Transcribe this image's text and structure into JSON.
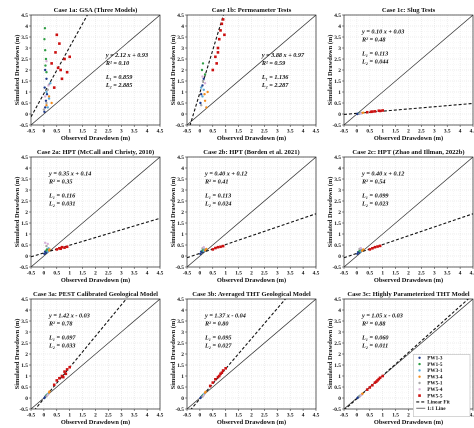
{
  "chart_data": {
    "type": "scatter",
    "axes": {
      "xlabel": "Observed Drawdown (m)",
      "ylabel": "Simulated Drawdown (m)",
      "xlim": [
        -0.5,
        4.5
      ],
      "ylim": [
        -0.5,
        4.5
      ],
      "ticks": [
        "-0.5",
        "0",
        "0.5",
        "1",
        "1.5",
        "2",
        "2.5",
        "3",
        "3.5",
        "4",
        "4.5"
      ],
      "grid": true
    },
    "series_styles": [
      {
        "name": "PW1-3",
        "color": "#1f3b8c",
        "marker": "circle"
      },
      {
        "name": "PW1-5",
        "color": "#2e9e44",
        "marker": "circle"
      },
      {
        "name": "PW3-1",
        "color": "#5aa9d6",
        "marker": "circle"
      },
      {
        "name": "PW3-4",
        "color": "#f28c1c",
        "marker": "circle"
      },
      {
        "name": "PW5-1",
        "color": "#a8a8a8",
        "marker": "circle"
      },
      {
        "name": "PW5-4",
        "color": "#d7b0d8",
        "marker": "circle"
      },
      {
        "name": "PW5-5",
        "color": "#cc1111",
        "marker": "square"
      }
    ],
    "legend": {
      "placement": "bottom-right of panel 3c",
      "entries": [
        "PW1-3",
        "PW1-5",
        "PW3-1",
        "PW3-4",
        "PW5-1",
        "PW5-4",
        "PW5-5",
        "Linear Fit",
        "1:1 Line"
      ]
    },
    "panels": [
      {
        "title": "Case 1a: GSA (Three Models)",
        "eq": "y = 2.12 x + 0.93",
        "r2": "R² = 0.10",
        "l1": "L₁ = 0.859",
        "l2": "L₂ = 2.885",
        "fit": [
          2.12,
          0.93
        ],
        "points": [
          [
            0.02,
            0.1,
            0
          ],
          [
            0.05,
            0.3,
            0
          ],
          [
            0.08,
            0.6,
            0
          ],
          [
            0.03,
            1.2,
            0
          ],
          [
            0.1,
            1.6,
            0
          ],
          [
            0.05,
            2.0,
            0
          ],
          [
            0.12,
            0.9,
            0
          ],
          [
            0.02,
            3.4,
            1
          ],
          [
            0.05,
            2.9,
            1
          ],
          [
            0.08,
            2.5,
            1
          ],
          [
            0.04,
            3.9,
            1
          ],
          [
            0.1,
            1.9,
            1
          ],
          [
            0.06,
            2.2,
            1
          ],
          [
            0.15,
            0.3,
            2
          ],
          [
            0.2,
            0.7,
            2
          ],
          [
            0.25,
            1.4,
            2
          ],
          [
            0.1,
            1.0,
            2
          ],
          [
            0.3,
            0.5,
            3
          ],
          [
            0.2,
            0.8,
            3
          ],
          [
            0.1,
            0.4,
            3
          ],
          [
            0.0,
            0.2,
            4
          ],
          [
            0.1,
            0.5,
            4
          ],
          [
            0.15,
            1.1,
            4
          ],
          [
            0.05,
            0.8,
            5
          ],
          [
            0.18,
            1.3,
            5
          ],
          [
            0.1,
            2.4,
            5
          ],
          [
            0.45,
            2.8,
            6
          ],
          [
            0.6,
            3.2,
            6
          ],
          [
            0.55,
            2.1,
            6
          ],
          [
            0.8,
            2.5,
            6
          ],
          [
            0.9,
            1.9,
            6
          ],
          [
            0.7,
            1.6,
            6
          ],
          [
            0.4,
            1.2,
            6
          ],
          [
            0.5,
            3.6,
            6
          ],
          [
            0.3,
            2.3,
            6
          ],
          [
            1.0,
            2.6,
            6
          ],
          [
            0.65,
            2.0,
            6
          ]
        ]
      },
      {
        "title": "Case 1b: Permeameter Tests",
        "eq": "y = 3.88 x + 0.97",
        "r2": "R² = 0.59",
        "l1": "L₁ = 1.136",
        "l2": "L₂ = 2.287",
        "fit": [
          3.88,
          0.97
        ],
        "points": [
          [
            0.02,
            0.5,
            0
          ],
          [
            0.05,
            0.9,
            0
          ],
          [
            0.1,
            1.3,
            0
          ],
          [
            0.15,
            1.6,
            0
          ],
          [
            0.08,
            2.0,
            1
          ],
          [
            0.12,
            2.3,
            1
          ],
          [
            0.2,
            1.8,
            1
          ],
          [
            0.05,
            1.2,
            2
          ],
          [
            0.1,
            0.8,
            2
          ],
          [
            0.15,
            1.1,
            2
          ],
          [
            0.2,
            0.6,
            3
          ],
          [
            0.25,
            0.3,
            3
          ],
          [
            0.18,
            0.9,
            3
          ],
          [
            0.3,
            1.0,
            3
          ],
          [
            0.05,
            0.4,
            4
          ],
          [
            0.12,
            1.5,
            4
          ],
          [
            0.1,
            1.7,
            5
          ],
          [
            0.2,
            1.4,
            5
          ],
          [
            0.6,
            2.6,
            6
          ],
          [
            0.7,
            3.0,
            6
          ],
          [
            0.75,
            3.4,
            6
          ],
          [
            0.8,
            3.8,
            6
          ],
          [
            0.85,
            4.1,
            6
          ],
          [
            0.65,
            2.3,
            6
          ],
          [
            0.9,
            4.3,
            6
          ],
          [
            0.5,
            2.0,
            6
          ],
          [
            0.7,
            2.8,
            6
          ],
          [
            0.95,
            3.6,
            6
          ]
        ]
      },
      {
        "title": "Case 1c: Slug Tests",
        "eq": "y = 0.10 x + 0.03",
        "r2": "R² = 0.48",
        "l1": "L₁ = 0.113",
        "l2": "L₂ = 0.044",
        "fit": [
          0.1,
          0.03
        ],
        "points": [
          [
            0.02,
            0.0,
            0
          ],
          [
            0.05,
            0.02,
            0
          ],
          [
            0.08,
            0.03,
            0
          ],
          [
            0.1,
            0.02,
            1
          ],
          [
            0.12,
            0.04,
            1
          ],
          [
            0.15,
            0.05,
            2
          ],
          [
            0.18,
            0.03,
            2
          ],
          [
            0.2,
            0.05,
            3
          ],
          [
            0.25,
            0.06,
            3
          ],
          [
            0.1,
            0.01,
            4
          ],
          [
            0.15,
            0.02,
            5
          ],
          [
            0.4,
            0.08,
            6
          ],
          [
            0.55,
            0.1,
            6
          ],
          [
            0.7,
            0.12,
            6
          ],
          [
            0.85,
            0.15,
            6
          ],
          [
            1.0,
            0.16,
            6
          ],
          [
            0.6,
            0.11,
            6
          ],
          [
            0.9,
            0.14,
            6
          ]
        ]
      },
      {
        "title": "Case 2a: HPT (McCall and Christy, 2010)",
        "eq": "y = 0.35 x + 0.14",
        "r2": "R² = 0.35",
        "l1": "L₁ = 0.116",
        "l2": "L₂ = 0.031",
        "fit": [
          0.35,
          0.14
        ],
        "points": [
          [
            0.02,
            0.1,
            0
          ],
          [
            0.05,
            0.2,
            0
          ],
          [
            0.08,
            0.15,
            0
          ],
          [
            0.1,
            0.25,
            1
          ],
          [
            0.12,
            0.3,
            1
          ],
          [
            0.15,
            0.2,
            2
          ],
          [
            0.18,
            0.35,
            2
          ],
          [
            0.2,
            0.25,
            3
          ],
          [
            0.22,
            0.3,
            3
          ],
          [
            0.1,
            0.45,
            4
          ],
          [
            0.15,
            0.55,
            5
          ],
          [
            0.05,
            0.6,
            5
          ],
          [
            0.5,
            0.3,
            6
          ],
          [
            0.6,
            0.35,
            6
          ],
          [
            0.7,
            0.4,
            6
          ],
          [
            0.8,
            0.38,
            6
          ],
          [
            0.9,
            0.42,
            6
          ],
          [
            0.65,
            0.33,
            6
          ]
        ]
      },
      {
        "title": "Case 2b: HPT (Borden et al. 2021)",
        "eq": "y = 0.40 x + 0.12",
        "r2": "R² = 0.41",
        "l1": "L₁ = 0.113",
        "l2": "L₂ = 0.024",
        "fit": [
          0.4,
          0.12
        ],
        "points": [
          [
            0.02,
            0.1,
            0
          ],
          [
            0.05,
            0.2,
            0
          ],
          [
            0.08,
            0.18,
            0
          ],
          [
            0.1,
            0.25,
            1
          ],
          [
            0.12,
            0.28,
            1
          ],
          [
            0.15,
            0.22,
            2
          ],
          [
            0.18,
            0.3,
            2
          ],
          [
            0.2,
            0.26,
            3
          ],
          [
            0.25,
            0.32,
            3
          ],
          [
            0.1,
            0.35,
            4
          ],
          [
            0.15,
            0.4,
            5
          ],
          [
            0.5,
            0.3,
            6
          ],
          [
            0.6,
            0.36,
            6
          ],
          [
            0.7,
            0.4,
            6
          ],
          [
            0.8,
            0.42,
            6
          ],
          [
            0.9,
            0.45,
            6
          ]
        ]
      },
      {
        "title": "Case 2c: HPT (Zhao and Illman, 2022b)",
        "eq": "y = 0.40 x + 0.12",
        "r2": "R² = 0.54",
        "l1": "L₁ = 0.099",
        "l2": "L₂ = 0.023",
        "fit": [
          0.4,
          0.12
        ],
        "points": [
          [
            0.02,
            0.1,
            0
          ],
          [
            0.05,
            0.18,
            0
          ],
          [
            0.08,
            0.16,
            0
          ],
          [
            0.1,
            0.22,
            1
          ],
          [
            0.12,
            0.26,
            1
          ],
          [
            0.15,
            0.2,
            2
          ],
          [
            0.18,
            0.28,
            2
          ],
          [
            0.2,
            0.24,
            3
          ],
          [
            0.25,
            0.3,
            3
          ],
          [
            0.1,
            0.32,
            4
          ],
          [
            0.15,
            0.36,
            5
          ],
          [
            0.5,
            0.3,
            6
          ],
          [
            0.6,
            0.35,
            6
          ],
          [
            0.7,
            0.4,
            6
          ],
          [
            0.8,
            0.43,
            6
          ],
          [
            0.9,
            0.46,
            6
          ]
        ]
      },
      {
        "title": "Case 3a: PEST Calibrated Geological Model",
        "eq": "y = 1.42 x - 0.03",
        "r2": "R² = 0.78",
        "l1": "L₁ = 0.097",
        "l2": "L₂ = 0.033",
        "fit": [
          1.42,
          -0.03
        ],
        "points": [
          [
            0.02,
            0.0,
            0
          ],
          [
            0.05,
            0.05,
            0
          ],
          [
            0.08,
            0.1,
            0
          ],
          [
            0.1,
            0.12,
            1
          ],
          [
            0.12,
            0.15,
            1
          ],
          [
            0.15,
            0.18,
            2
          ],
          [
            0.18,
            0.2,
            2
          ],
          [
            0.2,
            0.25,
            3
          ],
          [
            0.22,
            0.3,
            3
          ],
          [
            0.1,
            0.08,
            4
          ],
          [
            0.15,
            0.14,
            5
          ],
          [
            0.4,
            0.6,
            6
          ],
          [
            0.5,
            0.8,
            6
          ],
          [
            0.6,
            0.9,
            6
          ],
          [
            0.7,
            1.0,
            6
          ],
          [
            0.8,
            1.2,
            6
          ],
          [
            0.9,
            1.3,
            6
          ],
          [
            1.0,
            1.4,
            6
          ],
          [
            0.75,
            0.95,
            6
          ],
          [
            0.85,
            1.1,
            6
          ]
        ]
      },
      {
        "title": "Case 3b: Averaged THT Geological Model",
        "eq": "y = 1.37 x - 0.04",
        "r2": "R² = 0.80",
        "l1": "L₁ = 0.095",
        "l2": "L₂ = 0.027",
        "fit": [
          1.37,
          -0.04
        ],
        "points": [
          [
            0.02,
            0.0,
            0
          ],
          [
            0.05,
            0.04,
            0
          ],
          [
            0.08,
            0.08,
            0
          ],
          [
            0.1,
            0.1,
            1
          ],
          [
            0.12,
            0.14,
            1
          ],
          [
            0.15,
            0.16,
            2
          ],
          [
            0.18,
            0.2,
            2
          ],
          [
            0.2,
            0.24,
            3
          ],
          [
            0.22,
            0.28,
            3
          ],
          [
            0.1,
            0.06,
            4
          ],
          [
            0.15,
            0.12,
            5
          ],
          [
            0.4,
            0.55,
            6
          ],
          [
            0.5,
            0.7,
            6
          ],
          [
            0.6,
            0.85,
            6
          ],
          [
            0.7,
            0.95,
            6
          ],
          [
            0.8,
            1.1,
            6
          ],
          [
            0.9,
            1.25,
            6
          ],
          [
            1.0,
            1.35,
            6
          ],
          [
            0.75,
            1.0,
            6
          ],
          [
            0.85,
            1.15,
            6
          ]
        ]
      },
      {
        "title": "Case 3c: Highly Parameterized THT Model",
        "eq": "y = 1.05 x - 0.03",
        "r2": "R² = 0.88",
        "l1": "L₁ = 0.060",
        "l2": "L₂ = 0.011",
        "fit": [
          1.05,
          -0.03
        ],
        "points": [
          [
            0.02,
            0.0,
            0
          ],
          [
            0.05,
            0.03,
            0
          ],
          [
            0.08,
            0.06,
            0
          ],
          [
            0.1,
            0.08,
            1
          ],
          [
            0.12,
            0.1,
            1
          ],
          [
            0.15,
            0.13,
            2
          ],
          [
            0.18,
            0.15,
            2
          ],
          [
            0.2,
            0.18,
            3
          ],
          [
            0.22,
            0.2,
            3
          ],
          [
            0.1,
            0.07,
            4
          ],
          [
            0.15,
            0.12,
            5
          ],
          [
            0.4,
            0.38,
            6
          ],
          [
            0.5,
            0.48,
            6
          ],
          [
            0.6,
            0.58,
            6
          ],
          [
            0.7,
            0.7,
            6
          ],
          [
            0.8,
            0.8,
            6
          ],
          [
            0.9,
            0.92,
            6
          ],
          [
            1.0,
            1.0,
            6
          ],
          [
            0.75,
            0.74,
            6
          ],
          [
            0.85,
            0.86,
            6
          ]
        ]
      }
    ]
  }
}
